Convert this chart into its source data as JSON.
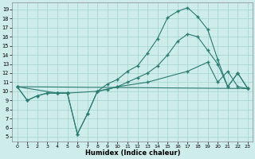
{
  "xlabel": "Humidex (Indice chaleur)",
  "bg_color": "#ceecea",
  "grid_color": "#aad8d4",
  "line_color": "#2a7a70",
  "xlim": [
    -0.5,
    23.5
  ],
  "ylim": [
    4.5,
    19.8
  ],
  "xticks": [
    0,
    1,
    2,
    3,
    4,
    5,
    6,
    7,
    8,
    9,
    10,
    11,
    12,
    13,
    14,
    15,
    16,
    17,
    18,
    19,
    20,
    21,
    22,
    23
  ],
  "yticks": [
    5,
    6,
    7,
    8,
    9,
    10,
    11,
    12,
    13,
    14,
    15,
    16,
    17,
    18,
    19
  ],
  "curve1_x": [
    0,
    1,
    2,
    3,
    4,
    5,
    6,
    7,
    8,
    9,
    10,
    11,
    12,
    13,
    14,
    15,
    16,
    17,
    18,
    19,
    20,
    21,
    22,
    23
  ],
  "curve1_y": [
    10.5,
    9.0,
    9.5,
    9.8,
    9.8,
    9.8,
    5.3,
    7.5,
    10.0,
    10.8,
    11.3,
    12.2,
    12.8,
    14.2,
    15.8,
    18.1,
    18.8,
    19.2,
    18.2,
    16.8,
    13.5,
    10.5,
    12.0,
    10.3
  ],
  "curve2_x": [
    0,
    1,
    2,
    3,
    4,
    5,
    6,
    7,
    8,
    9,
    10,
    11,
    12,
    13,
    14,
    15,
    16,
    17,
    18,
    19,
    20,
    21,
    22,
    23
  ],
  "curve2_y": [
    10.5,
    9.0,
    9.5,
    9.8,
    9.8,
    9.8,
    5.3,
    7.5,
    10.0,
    10.2,
    10.5,
    11.0,
    11.5,
    12.0,
    12.8,
    14.0,
    15.5,
    16.3,
    16.0,
    14.5,
    13.0,
    10.5,
    12.0,
    10.3
  ],
  "curve3_x": [
    0,
    23
  ],
  "curve3_y": [
    10.5,
    10.3
  ],
  "curve4_x": [
    0,
    4,
    5,
    8,
    10,
    13,
    17,
    19,
    20,
    21,
    22,
    23
  ],
  "curve4_y": [
    10.5,
    9.8,
    9.8,
    10.0,
    10.5,
    11.0,
    12.2,
    13.2,
    11.0,
    12.2,
    10.5,
    10.3
  ]
}
